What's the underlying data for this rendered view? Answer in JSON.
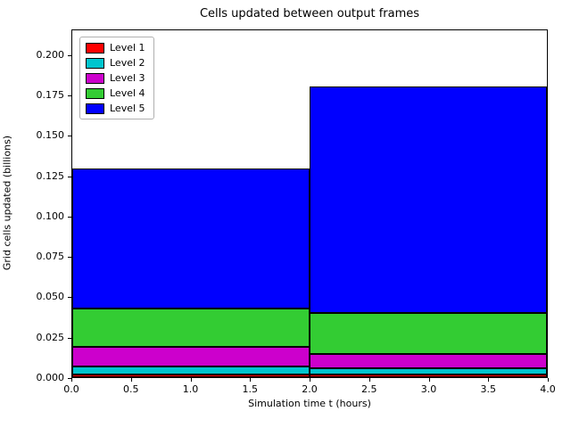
{
  "chart_data": {
    "type": "bar",
    "subtype": "stacked-interval-bars",
    "title": "Cells updated between output frames",
    "xlabel": "Simulation time t (hours)",
    "ylabel": "Grid cells updated (billions)",
    "xlim": [
      0,
      4
    ],
    "ylim": [
      0,
      0.216
    ],
    "grid": false,
    "legend_position": "upper left",
    "x_ticks": [
      0.0,
      0.5,
      1.0,
      1.5,
      2.0,
      2.5,
      3.0,
      3.5,
      4.0
    ],
    "x_tick_labels": [
      "0.0",
      "0.5",
      "1.0",
      "1.5",
      "2.0",
      "2.5",
      "3.0",
      "3.5",
      "4.0"
    ],
    "y_ticks": [
      0.0,
      0.025,
      0.05,
      0.075,
      0.1,
      0.125,
      0.15,
      0.175,
      0.2
    ],
    "y_tick_labels": [
      "0.000",
      "0.025",
      "0.050",
      "0.075",
      "0.100",
      "0.125",
      "0.150",
      "0.175",
      "0.200"
    ],
    "bar_intervals": [
      {
        "x_start": 0,
        "x_end": 2
      },
      {
        "x_start": 2,
        "x_end": 4
      }
    ],
    "bar_edge_color": "#000000",
    "series": [
      {
        "name": "Level 1",
        "color": "#ff0000",
        "values": [
          0.0015,
          0.0015
        ]
      },
      {
        "name": "Level 2",
        "color": "#00c5ce",
        "values": [
          0.005,
          0.004
        ]
      },
      {
        "name": "Level 3",
        "color": "#cc00cc",
        "values": [
          0.0125,
          0.009
        ]
      },
      {
        "name": "Level 4",
        "color": "#33cc33",
        "values": [
          0.0235,
          0.0255
        ]
      },
      {
        "name": "Level 5",
        "color": "#0000ff",
        "values": [
          0.0875,
          0.141
        ]
      }
    ],
    "bar_totals": [
      0.13,
      0.181
    ]
  }
}
